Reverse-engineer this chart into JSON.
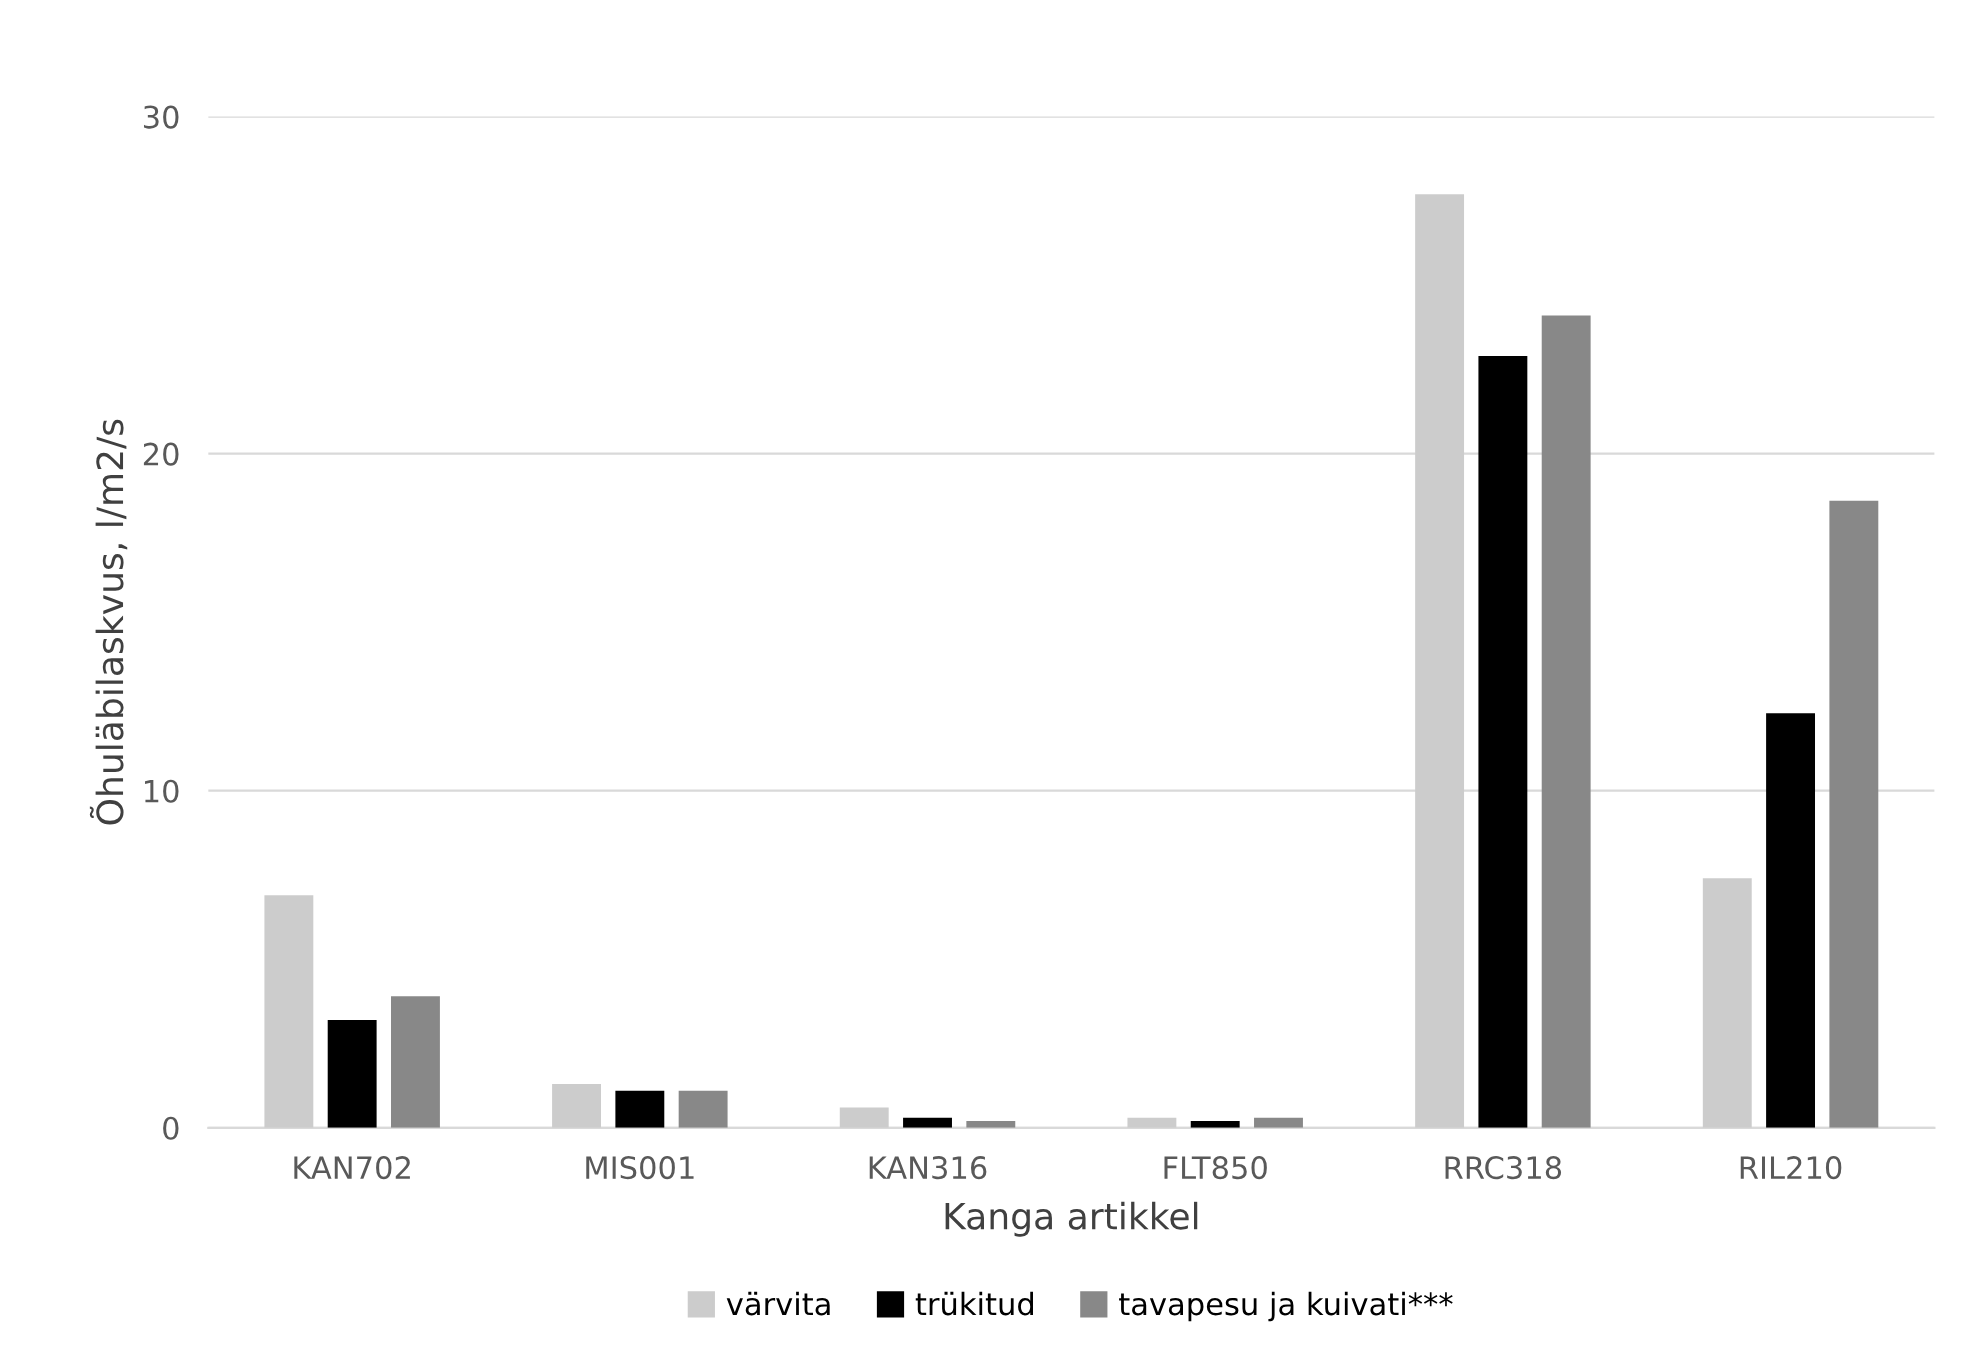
{
  "chart_data": {
    "type": "bar",
    "xlabel": "Kanga artikkel",
    "ylabel": "Õhuläbilaskvus, l/m2/s",
    "categories": [
      "KAN702",
      "MIS001",
      "KAN316",
      "FLT850",
      "RRC318",
      "RIL210"
    ],
    "series": [
      {
        "name": "värvita",
        "color": "#cccccc",
        "values": [
          6.9,
          1.3,
          0.6,
          0.3,
          27.7,
          7.4
        ]
      },
      {
        "name": "trükitud",
        "color": "#000000",
        "values": [
          3.2,
          1.1,
          0.3,
          0.2,
          22.9,
          12.3
        ]
      },
      {
        "name": "tavapesu ja kuivati***",
        "color": "#888888",
        "values": [
          3.9,
          1.1,
          0.2,
          0.3,
          24.1,
          18.6
        ]
      }
    ],
    "ylim": [
      0,
      30
    ],
    "yticks": [
      0,
      10,
      20,
      30
    ],
    "grid": "y",
    "legend": "bottom"
  }
}
